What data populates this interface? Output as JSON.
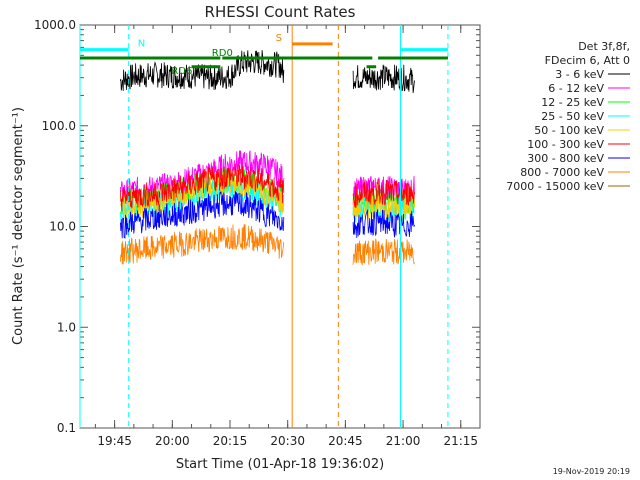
{
  "chart_data": {
    "type": "line",
    "title": "RHESSI Count Rates",
    "xlabel": "Start Time (01-Apr-18 19:36:02)",
    "ylabel": "Count Rate (s⁻¹ detector segment⁻¹)",
    "x_unit": "minutes after 19:36:02",
    "xlim": [
      "19:36:00",
      "21:20:00"
    ],
    "ylim": [
      0.1,
      1000
    ],
    "yscale": "log",
    "x_ticks": [
      "19:45",
      "20:00",
      "20:15",
      "20:30",
      "20:45",
      "21:00",
      "21:15"
    ],
    "y_ticks": [
      {
        "value": 0.1,
        "label": "0.1"
      },
      {
        "value": 1,
        "label": "1.0"
      },
      {
        "value": 10,
        "label": "10.0"
      },
      {
        "value": 100,
        "label": "100.0"
      },
      {
        "value": 1000,
        "label": "1000.0"
      }
    ],
    "legend_title": [
      "Det 3f,8f,",
      "FDecim 6, Att 0"
    ],
    "legend_position": "right",
    "footer": "19-Nov-2019 20:19",
    "gaps": [
      {
        "start": "19:43:00",
        "end": "19:46:30"
      },
      {
        "start": "20:29:30",
        "end": "20:47:00"
      }
    ],
    "series": [
      {
        "name": "3 - 6 keV",
        "color": "#000000",
        "segments": [
          {
            "x": [
              "19:46:30",
              "19:50",
              "19:55",
              "20:00",
              "20:05",
              "20:10",
              "20:15",
              "20:18",
              "20:22",
              "20:26",
              "20:28",
              "20:29"
            ],
            "y": [
              280,
              310,
              320,
              315,
              310,
              300,
              310,
              420,
              430,
              410,
              400,
              320
            ]
          },
          {
            "x": [
              "20:47:00",
              "20:50",
              "20:55",
              "21:00",
              "21:03"
            ],
            "y": [
              310,
              300,
              305,
              300,
              280
            ]
          }
        ]
      },
      {
        "name": "6 - 12 keV",
        "color": "#ff00ff",
        "segments": [
          {
            "x": [
              "19:46:30",
              "19:50",
              "19:55",
              "20:00",
              "20:05",
              "20:10",
              "20:15",
              "20:20",
              "20:25",
              "20:29"
            ],
            "y": [
              21,
              23,
              24,
              26,
              30,
              35,
              42,
              43,
              40,
              30
            ]
          },
          {
            "x": [
              "20:47:00",
              "20:50",
              "20:55",
              "21:00",
              "21:03"
            ],
            "y": [
              22,
              24,
              24,
              23,
              24
            ]
          }
        ]
      },
      {
        "name": "12 - 25 keV",
        "color": "#00ff00",
        "segments": [
          {
            "x": [
              "19:46:30",
              "19:50",
              "19:55",
              "20:00",
              "20:05",
              "20:10",
              "20:15",
              "20:20",
              "20:25",
              "20:29"
            ],
            "y": [
              17,
              18,
              19,
              21,
              24,
              27,
              29,
              27,
              23,
              19
            ]
          },
          {
            "x": [
              "20:47:00",
              "20:50",
              "20:55",
              "21:00",
              "21:03"
            ],
            "y": [
              17,
              18,
              18,
              17,
              18
            ]
          }
        ]
      },
      {
        "name": "25 - 50 keV",
        "color": "#00ffff",
        "segments": [
          {
            "x": [
              "19:46:30",
              "19:50",
              "19:55",
              "20:00",
              "20:05",
              "20:10",
              "20:15",
              "20:20",
              "20:25",
              "20:29"
            ],
            "y": [
              14,
              15,
              16,
              18,
              20,
              23,
              25,
              23,
              19,
              16
            ]
          },
          {
            "x": [
              "20:47:00",
              "20:50",
              "20:55",
              "21:00",
              "21:03"
            ],
            "y": [
              14,
              15,
              15,
              15,
              15
            ]
          }
        ]
      },
      {
        "name": "50 - 100 keV",
        "color": "#ffcc00",
        "segments": [
          {
            "x": [
              "19:46:30",
              "19:50",
              "19:55",
              "20:00",
              "20:05",
              "20:10",
              "20:15",
              "20:20",
              "20:25",
              "20:29"
            ],
            "y": [
              15,
              16,
              17,
              19,
              22,
              25,
              27,
              25,
              21,
              17
            ]
          },
          {
            "x": [
              "20:47:00",
              "20:50",
              "20:55",
              "21:00",
              "21:03"
            ],
            "y": [
              15,
              16,
              16,
              16,
              16
            ]
          }
        ]
      },
      {
        "name": "100 - 300 keV",
        "color": "#ff0000",
        "segments": [
          {
            "x": [
              "19:46:30",
              "19:50",
              "19:55",
              "20:00",
              "20:05",
              "20:10",
              "20:15",
              "20:20",
              "20:25",
              "20:29"
            ],
            "y": [
              19,
              20,
              21,
              23,
              26,
              29,
              32,
              31,
              27,
              22
            ]
          },
          {
            "x": [
              "20:47:00",
              "20:50",
              "20:55",
              "21:00",
              "21:03"
            ],
            "y": [
              20,
              22,
              22,
              21,
              22
            ]
          }
        ]
      },
      {
        "name": "300 - 800 keV",
        "color": "#0000ff",
        "segments": [
          {
            "x": [
              "19:46:30",
              "19:50",
              "19:55",
              "20:00",
              "20:05",
              "20:10",
              "20:15",
              "20:20",
              "20:25",
              "20:29"
            ],
            "y": [
              10,
              11,
              12,
              13,
              14,
              16,
              17,
              16,
              13,
              11
            ]
          },
          {
            "x": [
              "20:47:00",
              "20:50",
              "20:55",
              "21:00",
              "21:03"
            ],
            "y": [
              10,
              11,
              11,
              10,
              11
            ]
          }
        ]
      },
      {
        "name": "800 - 7000 keV",
        "color": "#ff8000",
        "segments": [
          {
            "x": [
              "19:46:30",
              "19:50",
              "19:55",
              "20:00",
              "20:05",
              "20:10",
              "20:15",
              "20:20",
              "20:25",
              "20:29"
            ],
            "y": [
              5.5,
              5.8,
              6,
              6.5,
              7,
              7.5,
              8,
              7.8,
              7,
              6
            ]
          },
          {
            "x": [
              "20:47:00",
              "20:50",
              "20:55",
              "21:00",
              "21:03"
            ],
            "y": [
              5.5,
              5.6,
              5.7,
              5.5,
              5.6
            ]
          }
        ]
      },
      {
        "name": "7000 - 15000 keV",
        "color": "#996600",
        "segments": []
      }
    ],
    "vertical_markers": [
      {
        "time": "19:36:00",
        "color": "#00ffff",
        "style": "solid"
      },
      {
        "time": "19:48:40",
        "color": "#00ffff",
        "style": "dashed"
      },
      {
        "time": "20:31:10",
        "color": "#ff8000",
        "style": "solid"
      },
      {
        "time": "20:43:10",
        "color": "#ff8000",
        "style": "dashed"
      },
      {
        "time": "20:59:20",
        "color": "#00ffff",
        "style": "solid"
      },
      {
        "time": "21:11:40",
        "color": "#00ffff",
        "style": "dashed"
      }
    ],
    "flag_bars": [
      {
        "label": "N",
        "color": "#00ffff",
        "y": 570,
        "intervals": [
          [
            "19:36:00",
            "19:48:40"
          ],
          [
            "20:59:20",
            "21:11:40"
          ]
        ]
      },
      {
        "label": "S",
        "color": "#ff8000",
        "y": 650,
        "intervals": [
          [
            "20:31:10",
            "20:41:40"
          ]
        ]
      },
      {
        "label": "",
        "color": "#008000",
        "y": 470,
        "intervals": [
          [
            "19:36:00",
            "20:12:30"
          ],
          [
            "20:13:00",
            "20:52:00"
          ],
          [
            "20:53:30",
            "21:11:40"
          ]
        ]
      },
      {
        "label": "RD0",
        "color": "#008000",
        "y": 470,
        "intervals": []
      },
      {
        "label": "RD6",
        "color": "#008000",
        "y": 385,
        "intervals": [
          [
            "20:05:00",
            "20:12:30"
          ],
          [
            "20:50:30",
            "20:53:00"
          ]
        ]
      }
    ]
  }
}
